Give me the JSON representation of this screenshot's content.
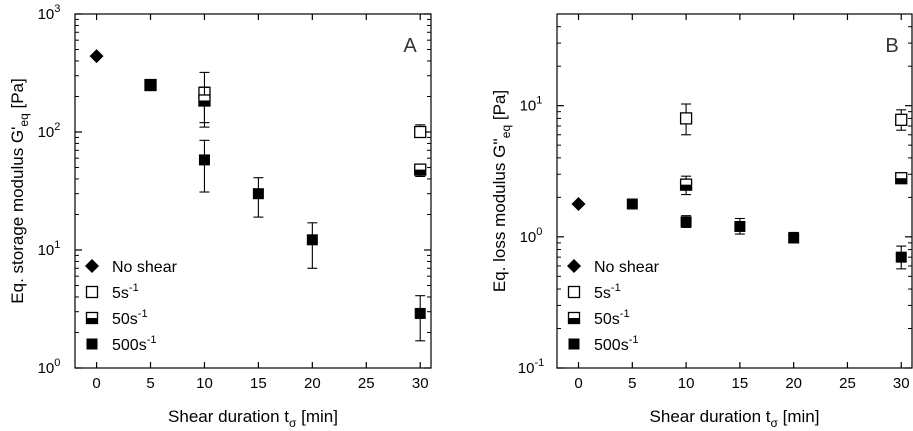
{
  "chart_data": [
    {
      "type": "scatter",
      "panel": "A",
      "xlabel": "Shear duration tσ [min]",
      "xlabel_parts": {
        "main": "Shear duration t",
        "sub": "σ",
        "tail": " [min]"
      },
      "ylabel": "Eq. storage modulus G'eq [Pa]",
      "ylabel_parts": {
        "main": "Eq. storage modulus G'",
        "sub": "eq",
        "tail": " [Pa]"
      },
      "xlim": [
        -2,
        31
      ],
      "ylim": [
        1,
        1000
      ],
      "yscale": "log",
      "xticks": [
        0,
        5,
        10,
        15,
        20,
        25,
        30
      ],
      "yticks": [
        {
          "value": 1,
          "base": "10",
          "exp": "0"
        },
        {
          "value": 10,
          "base": "10",
          "exp": "1"
        },
        {
          "value": 100,
          "base": "10",
          "exp": "2"
        },
        {
          "value": 1000,
          "base": "10",
          "exp": "3"
        }
      ],
      "legend": {
        "position": "bottom-left",
        "entries": [
          "No shear",
          "5s-1",
          "50s-1",
          "500s-1"
        ]
      },
      "series": [
        {
          "name": "No shear",
          "marker": "diamond",
          "points": [
            {
              "x": 0,
              "y": 440,
              "lo": 440,
              "hi": 440
            }
          ]
        },
        {
          "name": "5s-1",
          "marker": "open-square",
          "points": [
            {
              "x": 10,
              "y": 215,
              "lo": 120,
              "hi": 320
            },
            {
              "x": 30,
              "y": 100,
              "lo": 90,
              "hi": 115
            }
          ]
        },
        {
          "name": "50s-1",
          "marker": "half-square",
          "points": [
            {
              "x": 5,
              "y": 250,
              "lo": 230,
              "hi": 265
            },
            {
              "x": 10,
              "y": 185,
              "lo": 110,
              "hi": 240
            },
            {
              "x": 30,
              "y": 48,
              "lo": 42,
              "hi": 53
            }
          ]
        },
        {
          "name": "500s-1",
          "marker": "filled-square",
          "points": [
            {
              "x": 5,
              "y": 250,
              "lo": 225,
              "hi": 275
            },
            {
              "x": 10,
              "y": 58,
              "lo": 31,
              "hi": 85
            },
            {
              "x": 15,
              "y": 30,
              "lo": 19,
              "hi": 41
            },
            {
              "x": 20,
              "y": 12.2,
              "lo": 7,
              "hi": 17
            },
            {
              "x": 30,
              "y": 2.9,
              "lo": 1.7,
              "hi": 4.1
            }
          ]
        }
      ]
    },
    {
      "type": "scatter",
      "panel": "B",
      "xlabel": "Shear duration tσ [min]",
      "xlabel_parts": {
        "main": "Shear duration t",
        "sub": "σ",
        "tail": " [min]"
      },
      "ylabel": "Eq. loss modulus G''eq [Pa]",
      "ylabel_parts": {
        "main": "Eq. loss modulus G''",
        "sub": "eq",
        "tail": " [Pa]"
      },
      "xlim": [
        -2,
        31
      ],
      "ylim": [
        0.1,
        50
      ],
      "yscale": "log",
      "xticks": [
        0,
        5,
        10,
        15,
        20,
        25,
        30
      ],
      "yticks": [
        {
          "value": 0.1,
          "base": "10",
          "exp": "-1"
        },
        {
          "value": 1,
          "base": "10",
          "exp": "0"
        },
        {
          "value": 10,
          "base": "10",
          "exp": "1"
        }
      ],
      "legend": {
        "position": "bottom-left",
        "entries": [
          "No shear",
          "5s-1",
          "50s-1",
          "500s-1"
        ]
      },
      "series": [
        {
          "name": "No shear",
          "marker": "diamond",
          "points": [
            {
              "x": 0,
              "y": 1.78,
              "lo": 1.78,
              "hi": 1.78
            }
          ]
        },
        {
          "name": "5s-1",
          "marker": "open-square",
          "points": [
            {
              "x": 10,
              "y": 8.0,
              "lo": 6.0,
              "hi": 10.3
            },
            {
              "x": 30,
              "y": 7.8,
              "lo": 6.5,
              "hi": 9.3
            }
          ]
        },
        {
          "name": "50s-1",
          "marker": "half-square",
          "points": [
            {
              "x": 10,
              "y": 2.5,
              "lo": 2.1,
              "hi": 2.9
            },
            {
              "x": 30,
              "y": 2.8,
              "lo": 2.7,
              "hi": 2.95
            }
          ]
        },
        {
          "name": "500s-1",
          "marker": "filled-square",
          "points": [
            {
              "x": 5,
              "y": 1.78,
              "lo": 1.72,
              "hi": 1.84
            },
            {
              "x": 10,
              "y": 1.3,
              "lo": 1.18,
              "hi": 1.45
            },
            {
              "x": 15,
              "y": 1.2,
              "lo": 1.05,
              "hi": 1.38
            },
            {
              "x": 20,
              "y": 0.98,
              "lo": 0.9,
              "hi": 1.08
            },
            {
              "x": 30,
              "y": 0.7,
              "lo": 0.57,
              "hi": 0.85
            }
          ]
        }
      ]
    }
  ],
  "legend_labels": [
    {
      "base": "No shear",
      "sup": ""
    },
    {
      "base": "5s",
      "sup": "-1"
    },
    {
      "base": "50s",
      "sup": "-1"
    },
    {
      "base": "500s",
      "sup": "-1"
    }
  ],
  "colors": {
    "marker": "#000000",
    "axis": "#000000",
    "background": "#ffffff"
  }
}
